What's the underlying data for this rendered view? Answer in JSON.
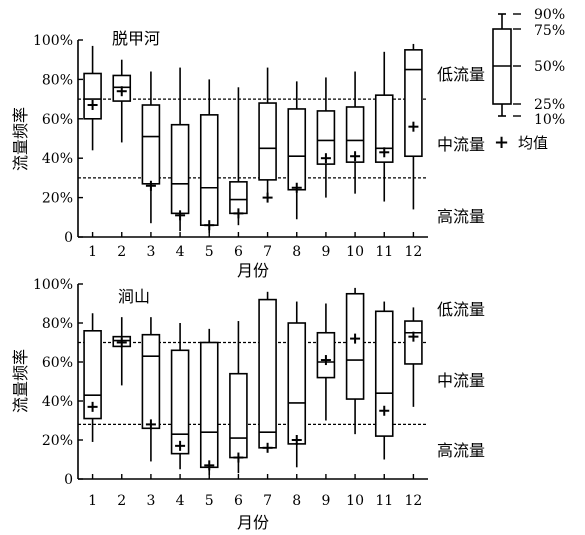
{
  "chart_data": [
    {
      "type": "box",
      "title": "脱甲河",
      "xlabel": "月份",
      "ylabel": "流量频率",
      "categories": [
        "1",
        "2",
        "3",
        "4",
        "5",
        "6",
        "7",
        "8",
        "9",
        "10",
        "11",
        "12"
      ],
      "ylim": [
        0,
        100
      ],
      "yticks": [
        "0",
        "20%",
        "40%",
        "60%",
        "80%",
        "100%"
      ],
      "thresholds": [
        70,
        30
      ],
      "zones": [
        "低流量",
        "中流量",
        "高流量"
      ],
      "boxes": [
        {
          "p10": 44,
          "p25": 60,
          "p50": 70,
          "p75": 83,
          "p90": 97,
          "mean": 67
        },
        {
          "p10": 48,
          "p25": 69,
          "p50": 76,
          "p75": 82,
          "p90": 90,
          "mean": 74
        },
        {
          "p10": 7,
          "p25": 27,
          "p50": 51,
          "p75": 67,
          "p90": 84,
          "mean": 26
        },
        {
          "p10": 3,
          "p25": 12,
          "p50": 27,
          "p75": 57,
          "p90": 86,
          "mean": 11
        },
        {
          "p10": 2,
          "p25": 6,
          "p50": 25,
          "p75": 62,
          "p90": 80,
          "mean": 6
        },
        {
          "p10": 6,
          "p25": 12,
          "p50": 19,
          "p75": 28,
          "p90": 76,
          "mean": 12
        },
        {
          "p10": 21,
          "p25": 29,
          "p50": 45,
          "p75": 68,
          "p90": 86,
          "mean": 20
        },
        {
          "p10": 9,
          "p25": 24,
          "p50": 41,
          "p75": 65,
          "p90": 79,
          "mean": 25
        },
        {
          "p10": 20,
          "p25": 37,
          "p50": 49,
          "p75": 64,
          "p90": 81,
          "mean": 40
        },
        {
          "p10": 22,
          "p25": 38,
          "p50": 49,
          "p75": 66,
          "p90": 84,
          "mean": 41
        },
        {
          "p10": 18,
          "p25": 38,
          "p50": 45,
          "p75": 72,
          "p90": 94,
          "mean": 43
        },
        {
          "p10": 14,
          "p25": 41,
          "p50": 85,
          "p75": 95,
          "p90": 98,
          "mean": 56
        }
      ]
    },
    {
      "type": "box",
      "title": "涧山",
      "xlabel": "月份",
      "ylabel": "流量频率",
      "categories": [
        "1",
        "2",
        "3",
        "4",
        "5",
        "6",
        "7",
        "8",
        "9",
        "10",
        "11",
        "12"
      ],
      "ylim": [
        0,
        100
      ],
      "yticks": [
        "0",
        "20%",
        "40%",
        "60%",
        "80%",
        "100%"
      ],
      "thresholds": [
        70,
        28
      ],
      "zones": [
        "低流量",
        "中流量",
        "高流量"
      ],
      "boxes": [
        {
          "p10": 19,
          "p25": 31,
          "p50": 43,
          "p75": 76,
          "p90": 85,
          "mean": 37
        },
        {
          "p10": 48,
          "p25": 68,
          "p50": 71,
          "p75": 73,
          "p90": 83,
          "mean": 70
        },
        {
          "p10": 9,
          "p25": 26,
          "p50": 63,
          "p75": 74,
          "p90": 83,
          "mean": 28
        },
        {
          "p10": 5,
          "p25": 13,
          "p50": 23,
          "p75": 66,
          "p90": 80,
          "mean": 17
        },
        {
          "p10": 2,
          "p25": 6,
          "p50": 24,
          "p75": 70,
          "p90": 77,
          "mean": 7
        },
        {
          "p10": 3,
          "p25": 11,
          "p50": 21,
          "p75": 54,
          "p90": 81,
          "mean": 11
        },
        {
          "p10": 15,
          "p25": 16,
          "p50": 24,
          "p75": 92,
          "p90": 96,
          "mean": 16
        },
        {
          "p10": 6,
          "p25": 18,
          "p50": 39,
          "p75": 80,
          "p90": 91,
          "mean": 20
        },
        {
          "p10": 30,
          "p25": 52,
          "p50": 60,
          "p75": 75,
          "p90": 90,
          "mean": 61
        },
        {
          "p10": 23,
          "p25": 41,
          "p50": 61,
          "p75": 95,
          "p90": 98,
          "mean": 72
        },
        {
          "p10": 10,
          "p25": 22,
          "p50": 44,
          "p75": 86,
          "p90": 91,
          "mean": 35
        },
        {
          "p10": 37,
          "p25": 59,
          "p50": 75,
          "p75": 81,
          "p90": 88,
          "mean": 73
        }
      ]
    }
  ],
  "legend": {
    "percentiles": [
      "90%",
      "75%",
      "50%",
      "25%",
      "10%"
    ],
    "mean_symbol": "+",
    "mean_label": "均值"
  }
}
